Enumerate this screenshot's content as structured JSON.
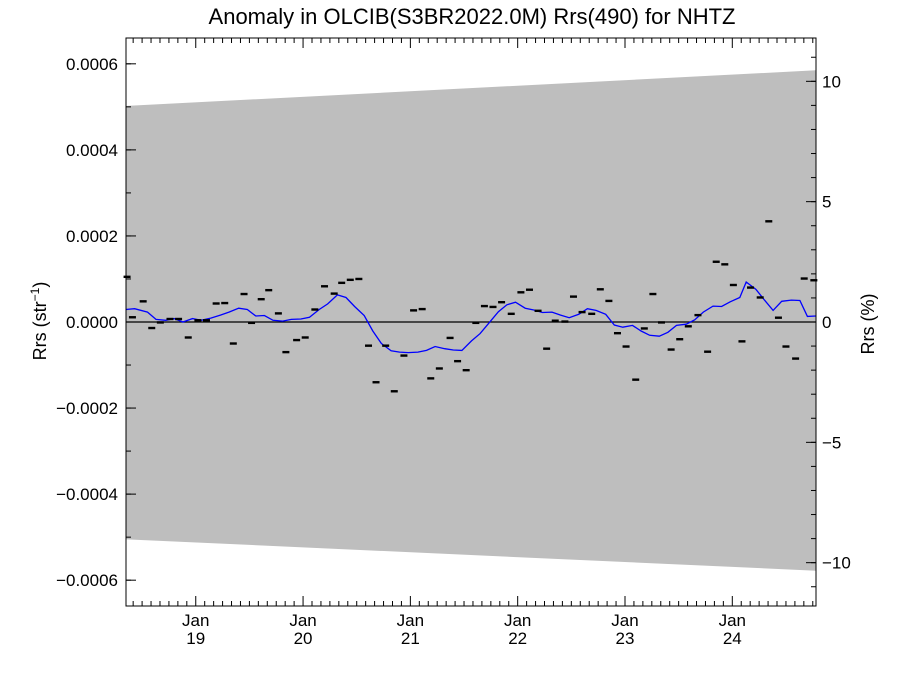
{
  "chart_data": {
    "type": "scatter",
    "title": "Anomaly in OLCIB(S3BR2022.0M) Rrs(490) for NHTZ",
    "ylabel_left": "Rrs (str",
    "ylabel_left_sup": "−1",
    "ylabel_left_close": ")",
    "ylabel_right": "Rrs (%)",
    "ylim_left": [
      -0.00066,
      0.00066
    ],
    "ylim_right": [
      -11.8,
      11.8
    ],
    "xlim": [
      2018.35,
      2024.78
    ],
    "grid": false,
    "legend": "none",
    "colors": {
      "band": "#bebebe",
      "line": "#0000ff",
      "points": "#000000",
      "zero": "#000000"
    },
    "left_ticks": [
      {
        "v": 0.0006,
        "label": "0.0006"
      },
      {
        "v": 0.0004,
        "label": "0.0004"
      },
      {
        "v": 0.0002,
        "label": "0.0002"
      },
      {
        "v": 0.0,
        "label": "0.0000"
      },
      {
        "v": -0.0002,
        "label": "−0.0002"
      },
      {
        "v": -0.0004,
        "label": "−0.0004"
      },
      {
        "v": -0.0006,
        "label": "−0.0006"
      }
    ],
    "right_ticks": [
      {
        "v": 10,
        "label": "10"
      },
      {
        "v": 5,
        "label": "5"
      },
      {
        "v": 0,
        "label": "0"
      },
      {
        "v": -5,
        "label": "−5"
      },
      {
        "v": -10,
        "label": "−10"
      }
    ],
    "x_ticks": [
      {
        "v": 2019.0,
        "month": "Jan",
        "year": "19"
      },
      {
        "v": 2020.0,
        "month": "Jan",
        "year": "20"
      },
      {
        "v": 2021.0,
        "month": "Jan",
        "year": "21"
      },
      {
        "v": 2022.0,
        "month": "Jan",
        "year": "22"
      },
      {
        "v": 2023.0,
        "month": "Jan",
        "year": "23"
      },
      {
        "v": 2024.0,
        "month": "Jan",
        "year": "24"
      }
    ],
    "band": {
      "x": [
        2018.35,
        2024.78
      ],
      "upper": [
        0.000502,
        0.000585
      ],
      "lower": [
        -0.000505,
        -0.000578
      ]
    },
    "points": [
      [
        2018.36,
        0.000105
      ],
      [
        2018.41,
        1.1e-05
      ],
      [
        2018.51,
        4.8e-05
      ],
      [
        2018.59,
        -1.4e-05
      ],
      [
        2018.67,
        -1e-06
      ],
      [
        2018.76,
        7e-06
      ],
      [
        2018.84,
        7e-06
      ],
      [
        2018.93,
        -3.6e-05
      ],
      [
        2019.02,
        4e-06
      ],
      [
        2019.1,
        4e-06
      ],
      [
        2019.19,
        4.3e-05
      ],
      [
        2019.27,
        4.4e-05
      ],
      [
        2019.35,
        -5e-05
      ],
      [
        2019.45,
        6.5e-05
      ],
      [
        2019.52,
        -2e-06
      ],
      [
        2019.61,
        5.3e-05
      ],
      [
        2019.68,
        7.4e-05
      ],
      [
        2019.77,
        2e-05
      ],
      [
        2019.84,
        -7e-05
      ],
      [
        2019.94,
        -4.2e-05
      ],
      [
        2020.02,
        -3.6e-05
      ],
      [
        2020.11,
        2.9e-05
      ],
      [
        2020.2,
        8.3e-05
      ],
      [
        2020.29,
        6.6e-05
      ],
      [
        2020.36,
        9.1e-05
      ],
      [
        2020.44,
        9.8e-05
      ],
      [
        2020.52,
        0.0001
      ],
      [
        2020.61,
        -5.5e-05
      ],
      [
        2020.68,
        -0.00014
      ],
      [
        2020.77,
        -5.5e-05
      ],
      [
        2020.85,
        -0.000161
      ],
      [
        2020.94,
        -7.8e-05
      ],
      [
        2021.03,
        2.7e-05
      ],
      [
        2021.11,
        3e-05
      ],
      [
        2021.19,
        -0.000131
      ],
      [
        2021.27,
        -0.000108
      ],
      [
        2021.37,
        -3.7e-05
      ],
      [
        2021.44,
        -9.1e-05
      ],
      [
        2021.52,
        -0.000112
      ],
      [
        2021.61,
        -2e-06
      ],
      [
        2021.69,
        3.7e-05
      ],
      [
        2021.77,
        3.5e-05
      ],
      [
        2021.85,
        4.6e-05
      ],
      [
        2021.94,
        1.9e-05
      ],
      [
        2022.03,
        6.9e-05
      ],
      [
        2022.11,
        7.5e-05
      ],
      [
        2022.19,
        2.6e-05
      ],
      [
        2022.27,
        -6.2e-05
      ],
      [
        2022.35,
        3e-06
      ],
      [
        2022.44,
        1e-06
      ],
      [
        2022.52,
        5.9e-05
      ],
      [
        2022.6,
        2.3e-05
      ],
      [
        2022.69,
        1.9e-05
      ],
      [
        2022.77,
        7.6e-05
      ],
      [
        2022.85,
        4.9e-05
      ],
      [
        2022.93,
        -2.6e-05
      ],
      [
        2023.01,
        -5.7e-05
      ],
      [
        2023.1,
        -0.000134
      ],
      [
        2023.18,
        -1.5e-05
      ],
      [
        2023.26,
        6.5e-05
      ],
      [
        2023.34,
        -1e-06
      ],
      [
        2023.43,
        -6.4e-05
      ],
      [
        2023.51,
        -4e-05
      ],
      [
        2023.59,
        -1e-05
      ],
      [
        2023.68,
        1.6e-05
      ],
      [
        2023.77,
        -6.9e-05
      ],
      [
        2023.85,
        0.00014
      ],
      [
        2023.93,
        0.000134
      ],
      [
        2024.01,
        8.6e-05
      ],
      [
        2024.09,
        -4.5e-05
      ],
      [
        2024.17,
        8e-05
      ],
      [
        2024.26,
        5.7e-05
      ],
      [
        2024.34,
        0.000234
      ],
      [
        2024.43,
        1e-05
      ],
      [
        2024.5,
        -5.7e-05
      ],
      [
        2024.59,
        -8.5e-05
      ],
      [
        2024.67,
        0.000101
      ],
      [
        2024.76,
        9.7e-05
      ]
    ],
    "line": [
      [
        2018.35,
        2.9e-05
      ],
      [
        2018.43,
        3.1e-05
      ],
      [
        2018.55,
        2.3e-05
      ],
      [
        2018.63,
        6e-06
      ],
      [
        2018.72,
        4e-06
      ],
      [
        2018.8,
        8e-06
      ],
      [
        2018.88,
        0.0
      ],
      [
        2018.97,
        8e-06
      ],
      [
        2019.05,
        4e-06
      ],
      [
        2019.14,
        9e-06
      ],
      [
        2019.23,
        1.6e-05
      ],
      [
        2019.31,
        2.3e-05
      ],
      [
        2019.4,
        3.2e-05
      ],
      [
        2019.48,
        2.9e-05
      ],
      [
        2019.56,
        1.4e-05
      ],
      [
        2019.64,
        1.5e-05
      ],
      [
        2019.72,
        4e-06
      ],
      [
        2019.81,
        2e-06
      ],
      [
        2019.89,
        6e-06
      ],
      [
        2019.98,
        7e-06
      ],
      [
        2020.06,
        1.1e-05
      ],
      [
        2020.15,
        2.9e-05
      ],
      [
        2020.23,
        4.2e-05
      ],
      [
        2020.32,
        6.3e-05
      ],
      [
        2020.4,
        5.7e-05
      ],
      [
        2020.48,
        3.6e-05
      ],
      [
        2020.57,
        1.5e-05
      ],
      [
        2020.65,
        -2.1e-05
      ],
      [
        2020.73,
        -5e-05
      ],
      [
        2020.82,
        -6.7e-05
      ],
      [
        2020.9,
        -7e-05
      ],
      [
        2020.98,
        -7.1e-05
      ],
      [
        2021.07,
        -7e-05
      ],
      [
        2021.15,
        -6.6e-05
      ],
      [
        2021.23,
        -5.7e-05
      ],
      [
        2021.32,
        -6.2e-05
      ],
      [
        2021.4,
        -6.5e-05
      ],
      [
        2021.48,
        -6.6e-05
      ],
      [
        2021.57,
        -4.4e-05
      ],
      [
        2021.65,
        -2.7e-05
      ],
      [
        2021.73,
        -3e-06
      ],
      [
        2021.82,
        2.4e-05
      ],
      [
        2021.9,
        4e-05
      ],
      [
        2021.98,
        4.6e-05
      ],
      [
        2022.07,
        3.2e-05
      ],
      [
        2022.15,
        2.8e-05
      ],
      [
        2022.23,
        2.2e-05
      ],
      [
        2022.32,
        2.3e-05
      ],
      [
        2022.4,
        1.6e-05
      ],
      [
        2022.48,
        1e-05
      ],
      [
        2022.57,
        1.8e-05
      ],
      [
        2022.65,
        3.1e-05
      ],
      [
        2022.73,
        2.7e-05
      ],
      [
        2022.82,
        1.8e-05
      ],
      [
        2022.9,
        -7e-06
      ],
      [
        2022.98,
        -1.2e-05
      ],
      [
        2023.07,
        -8e-06
      ],
      [
        2023.15,
        -2.1e-05
      ],
      [
        2023.23,
        -3.1e-05
      ],
      [
        2023.32,
        -3.3e-05
      ],
      [
        2023.4,
        -2.4e-05
      ],
      [
        2023.48,
        -8e-06
      ],
      [
        2023.57,
        -5e-06
      ],
      [
        2023.65,
        5e-06
      ],
      [
        2023.73,
        2.3e-05
      ],
      [
        2023.82,
        3.7e-05
      ],
      [
        2023.9,
        3.6e-05
      ],
      [
        2023.98,
        4.7e-05
      ],
      [
        2024.07,
        5.7e-05
      ],
      [
        2024.13,
        9.3e-05
      ],
      [
        2024.22,
        7.6e-05
      ],
      [
        2024.3,
        5.1e-05
      ],
      [
        2024.38,
        2.7e-05
      ],
      [
        2024.46,
        4.8e-05
      ],
      [
        2024.55,
        5.1e-05
      ],
      [
        2024.63,
        5e-05
      ],
      [
        2024.7,
        1.3e-05
      ],
      [
        2024.78,
        1.4e-05
      ]
    ]
  }
}
